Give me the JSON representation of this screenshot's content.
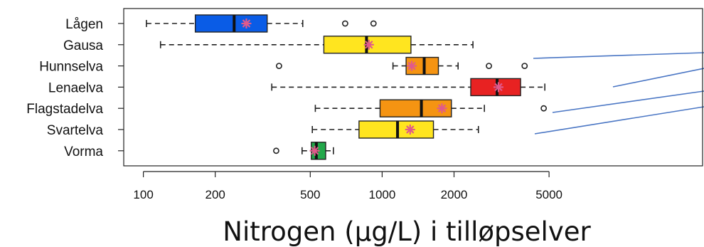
{
  "chart_data": {
    "type": "boxplot",
    "orientation": "horizontal",
    "title": "",
    "xlabel": "Nitrogen (µg/L) i tilløpselver",
    "ylabel": "",
    "x_scale": "log",
    "xlim": [
      85,
      5800
    ],
    "x_ticks": [
      100,
      200,
      500,
      1000,
      2000,
      5000
    ],
    "x_tick_labels": [
      "100",
      "200",
      "500",
      "1000",
      "2000",
      "5000"
    ],
    "grid": false,
    "legend": "none",
    "categories": [
      "Lågen",
      "Gausa",
      "Hunnselva",
      "Lenaelva",
      "Flagstadelva",
      "Svartelva",
      "Vorma"
    ],
    "boxes": [
      {
        "name": "Lågen",
        "color": "#0a5ce6",
        "whisker_low": 103,
        "q1": 165,
        "median": 240,
        "q3": 330,
        "whisker_high": 465,
        "mean": 270,
        "outliers": [
          700,
          920
        ]
      },
      {
        "name": "Gausa",
        "color": "#ffe51f",
        "whisker_low": 118,
        "q1": 570,
        "median": 860,
        "q3": 1320,
        "whisker_high": 2400,
        "mean": 880,
        "outliers": []
      },
      {
        "name": "Hunnselva",
        "color": "#f59412",
        "whisker_low": 1110,
        "q1": 1260,
        "median": 1500,
        "q3": 1720,
        "whisker_high": 2080,
        "mean": 1330,
        "outliers": [
          370,
          2800,
          3950
        ]
      },
      {
        "name": "Lenaelva",
        "color": "#e82222",
        "whisker_low": 345,
        "q1": 2350,
        "median": 3030,
        "q3": 3800,
        "whisker_high": 4800,
        "mean": 3070,
        "outliers": []
      },
      {
        "name": "Flagstadelva",
        "color": "#f59412",
        "whisker_low": 525,
        "q1": 980,
        "median": 1460,
        "q3": 1950,
        "whisker_high": 2680,
        "mean": 1780,
        "outliers": [
          4750
        ]
      },
      {
        "name": "Svartelva",
        "color": "#ffe51f",
        "whisker_low": 510,
        "q1": 800,
        "median": 1160,
        "q3": 1640,
        "whisker_high": 2530,
        "mean": 1310,
        "outliers": []
      },
      {
        "name": "Vorma",
        "color": "#22a84a",
        "whisker_low": 462,
        "q1": 505,
        "median": 530,
        "q3": 580,
        "whisker_high": 625,
        "mean": 522,
        "outliers": [
          360
        ]
      }
    ],
    "mean_marker_color": "#e05a8c",
    "connector_color": "#4a76c4"
  }
}
